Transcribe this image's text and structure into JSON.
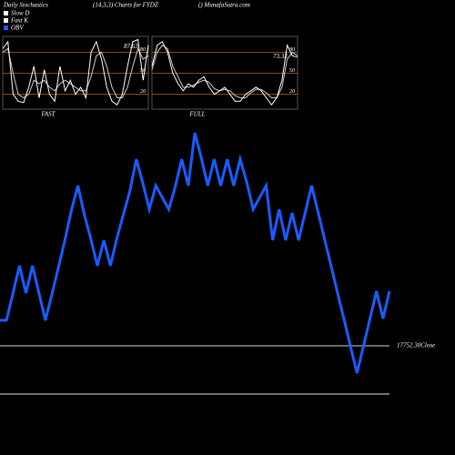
{
  "header": {
    "title": "Daily Stochastics",
    "subtitle": "(14,3,3) Charts for FYDZ",
    "source": "() MunafaSutra.com"
  },
  "close_label": "17752.30Close",
  "chart_data": [
    {
      "type": "line",
      "label": "FAST",
      "ylim": [
        0,
        100
      ],
      "yticks": [
        80,
        50,
        20
      ],
      "last_value": 87.63,
      "series": [
        {
          "name": "Fast K",
          "color": "#ffffff",
          "values": [
            85,
            95,
            20,
            10,
            8,
            30,
            60,
            15,
            55,
            20,
            10,
            60,
            25,
            40,
            20,
            30,
            15,
            80,
            95,
            70,
            30,
            10,
            5,
            20,
            60,
            95,
            98,
            40,
            90
          ]
        },
        {
          "name": "Slow D",
          "color": "#cccccc",
          "values": [
            80,
            85,
            50,
            20,
            15,
            20,
            40,
            35,
            40,
            30,
            25,
            35,
            40,
            35,
            30,
            25,
            25,
            45,
            75,
            80,
            60,
            30,
            15,
            15,
            30,
            60,
            85,
            70,
            75
          ]
        }
      ]
    },
    {
      "type": "line",
      "label": "FULL",
      "ylim": [
        0,
        100
      ],
      "yticks": [
        80,
        50,
        20
      ],
      "last_value": 73.33,
      "series": [
        {
          "name": "Fast K",
          "color": "#ffffff",
          "values": [
            60,
            90,
            95,
            80,
            50,
            35,
            25,
            35,
            30,
            40,
            45,
            30,
            20,
            25,
            30,
            20,
            10,
            10,
            20,
            25,
            30,
            25,
            15,
            5,
            15,
            40,
            90,
            75,
            73
          ]
        },
        {
          "name": "Slow D",
          "color": "#cccccc",
          "values": [
            55,
            80,
            90,
            85,
            60,
            45,
            30,
            30,
            33,
            37,
            40,
            37,
            28,
            25,
            27,
            25,
            18,
            15,
            15,
            22,
            27,
            27,
            22,
            15,
            15,
            30,
            70,
            80,
            75
          ]
        }
      ]
    },
    {
      "type": "line",
      "ylim": [
        0,
        280
      ],
      "series": [
        {
          "name": "OBV",
          "color": "#1a5cff",
          "values": [
            68,
            68,
            98,
            128,
            98,
            128,
            98,
            68,
            97,
            126,
            156,
            189,
            216,
            184,
            157,
            128,
            156,
            128,
            158,
            184,
            210,
            245,
            219,
            190,
            216,
            203,
            190,
            215,
            245,
            216,
            274,
            247,
            216,
            245,
            216,
            245,
            216,
            245,
            220,
            190,
            203,
            216,
            156,
            190,
            156,
            186,
            156,
            186,
            216,
            187,
            157,
            128,
            98,
            69,
            39,
            10,
            40,
            70,
            100,
            70,
            100
          ]
        }
      ]
    }
  ]
}
